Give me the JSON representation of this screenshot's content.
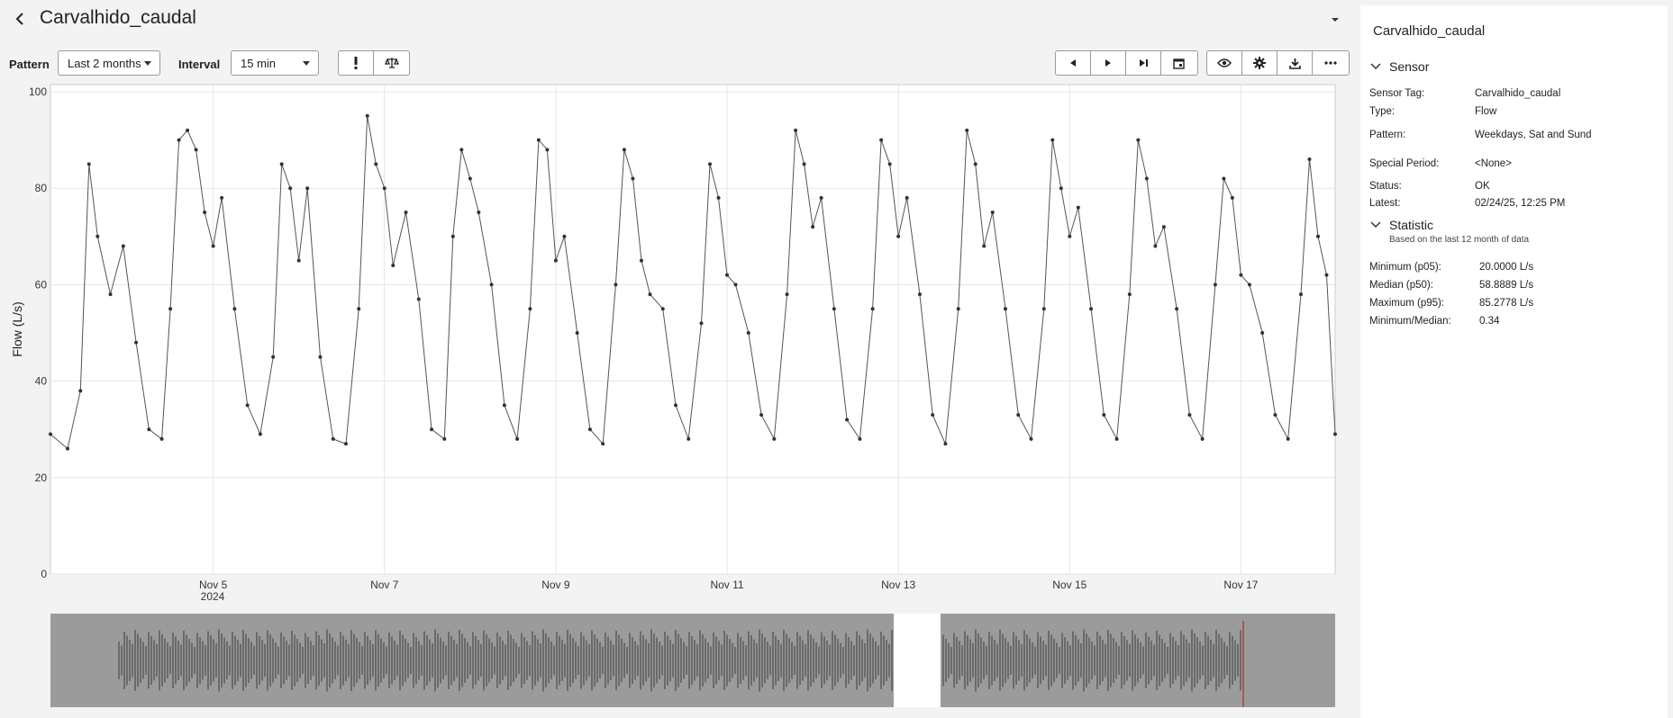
{
  "header": {
    "title": "Carvalhido_caudal"
  },
  "toolbar": {
    "pattern_label": "Pattern",
    "pattern_value": "Last 2 months",
    "interval_label": "Interval",
    "interval_value": "15 min"
  },
  "panel": {
    "title": "Carvalhido_caudal",
    "sensor_section": "Sensor",
    "sensor_rows": [
      {
        "k": "Sensor Tag:",
        "v": "Carvalhido_caudal"
      },
      {
        "k": "Type:",
        "v": "Flow"
      },
      {
        "k": "Pattern:",
        "v": "Weekdays, Sat and Sund"
      },
      {
        "k": "Special Period:",
        "v": "<None>"
      },
      {
        "k": "Status:",
        "v": "OK"
      },
      {
        "k": "Latest:",
        "v": "02/24/25, 12:25 PM"
      }
    ],
    "statistic_section": "Statistic",
    "statistic_note": "Based on the last 12 month of data",
    "stat_rows": [
      {
        "k": "Minimum (p05):",
        "v": "20.0000 L/s"
      },
      {
        "k": "Median (p50):",
        "v": "58.8889 L/s"
      },
      {
        "k": "Maximum (p95):",
        "v": "85.2778 L/s"
      },
      {
        "k": "Minimum/Median:",
        "v": "0.34"
      }
    ]
  },
  "chart_data": {
    "type": "line",
    "ylabel": "Flow (L/s)",
    "ylim": [
      0,
      100
    ],
    "yticks": [
      0,
      20,
      40,
      60,
      80,
      100
    ],
    "xticks": [
      "Nov 5",
      "Nov 7",
      "Nov 9",
      "Nov 11",
      "Nov 13",
      "Nov 15",
      "Nov 17"
    ],
    "x_year_label": "2024",
    "x_range_days": [
      3.1,
      18.1
    ],
    "grid": true,
    "series": [
      {
        "color": "#555555",
        "x": [
          3.1,
          3.3,
          3.45,
          3.55,
          3.65,
          3.8,
          3.95,
          4.1,
          4.25,
          4.4,
          4.5,
          4.6,
          4.7,
          4.8,
          4.9,
          5.0,
          5.1,
          5.25,
          5.4,
          5.55,
          5.7,
          5.8,
          5.9,
          6.0,
          6.1,
          6.25,
          6.4,
          6.55,
          6.7,
          6.8,
          6.9,
          7.0,
          7.1,
          7.25,
          7.4,
          7.55,
          7.7,
          7.8,
          7.9,
          8.0,
          8.1,
          8.25,
          8.4,
          8.55,
          8.7,
          8.8,
          8.9,
          9.0,
          9.1,
          9.25,
          9.4,
          9.55,
          9.7,
          9.8,
          9.9,
          10.0,
          10.1,
          10.25,
          10.4,
          10.55,
          10.7,
          10.8,
          10.9,
          11.0,
          11.1,
          11.25,
          11.4,
          11.55,
          11.7,
          11.8,
          11.9,
          12.0,
          12.1,
          12.25,
          12.4,
          12.55,
          12.7,
          12.8,
          12.9,
          13.0,
          13.1,
          13.25,
          13.4,
          13.55,
          13.7,
          13.8,
          13.9,
          14.0,
          14.1,
          14.25,
          14.4,
          14.55,
          14.7,
          14.8,
          14.9,
          15.0,
          15.1,
          15.25,
          15.4,
          15.55,
          15.7,
          15.8,
          15.9,
          16.0,
          16.1,
          16.25,
          16.4,
          16.55,
          16.7,
          16.8,
          16.9,
          17.0,
          17.1,
          17.25,
          17.4,
          17.55,
          17.7,
          17.8,
          17.9,
          18.0,
          18.1
        ],
        "y": [
          29,
          26,
          38,
          85,
          70,
          58,
          68,
          48,
          30,
          28,
          55,
          90,
          92,
          88,
          75,
          68,
          78,
          55,
          35,
          29,
          45,
          85,
          80,
          65,
          80,
          45,
          28,
          27,
          55,
          95,
          85,
          80,
          64,
          75,
          57,
          30,
          28,
          70,
          88,
          82,
          75,
          60,
          35,
          28,
          55,
          90,
          88,
          65,
          70,
          50,
          30,
          27,
          60,
          88,
          82,
          65,
          58,
          55,
          35,
          28,
          52,
          85,
          78,
          62,
          60,
          50,
          33,
          28,
          58,
          92,
          85,
          72,
          78,
          55,
          32,
          28,
          55,
          90,
          85,
          70,
          78,
          58,
          33,
          27,
          55,
          92,
          85,
          68,
          75,
          55,
          33,
          28,
          55,
          90,
          80,
          70,
          76,
          55,
          33,
          28,
          58,
          90,
          82,
          68,
          72,
          55,
          33,
          28,
          60,
          82,
          78,
          62,
          60,
          50,
          33,
          28,
          58,
          86,
          70,
          62,
          29
        ]
      }
    ]
  }
}
